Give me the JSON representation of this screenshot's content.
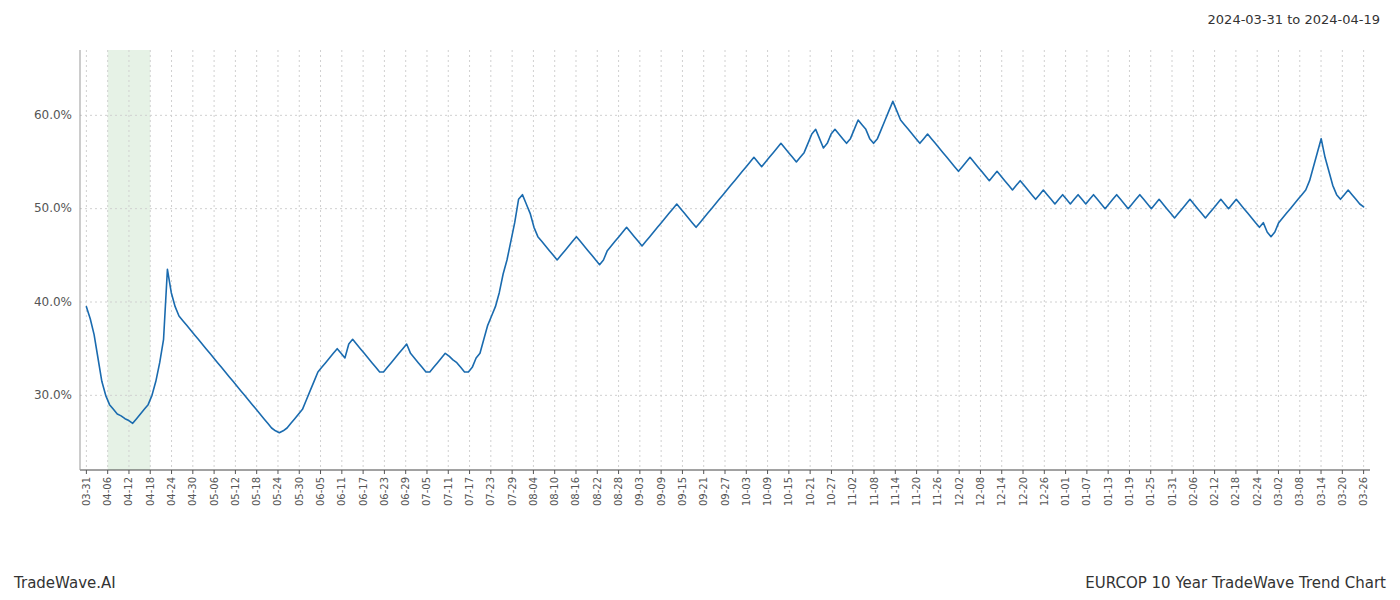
{
  "chart_data": {
    "type": "line",
    "title": "EURCOP 10 Year TradeWave Trend Chart",
    "subtitle": "2024-03-31 to 2024-04-19",
    "annotations": [
      "TradeWave.AI"
    ],
    "grid": true,
    "ylim": [
      22.0,
      67.0
    ],
    "yticks": [
      {
        "value": 30,
        "label": "30.0%"
      },
      {
        "value": 40,
        "label": "40.0%"
      },
      {
        "value": 50,
        "label": "50.0%"
      },
      {
        "value": 60,
        "label": "60.0%"
      }
    ],
    "xlim": [
      -0.3,
      60.3
    ],
    "xticks": [
      {
        "value": 0,
        "label": "03-31"
      },
      {
        "value": 1,
        "label": "04-06"
      },
      {
        "value": 2,
        "label": "04-12"
      },
      {
        "value": 3,
        "label": "04-18"
      },
      {
        "value": 4,
        "label": "04-24"
      },
      {
        "value": 5,
        "label": "04-30"
      },
      {
        "value": 6,
        "label": "05-06"
      },
      {
        "value": 7,
        "label": "05-12"
      },
      {
        "value": 8,
        "label": "05-18"
      },
      {
        "value": 9,
        "label": "05-24"
      },
      {
        "value": 10,
        "label": "05-30"
      },
      {
        "value": 11,
        "label": "06-05"
      },
      {
        "value": 12,
        "label": "06-11"
      },
      {
        "value": 13,
        "label": "06-17"
      },
      {
        "value": 14,
        "label": "06-23"
      },
      {
        "value": 15,
        "label": "06-29"
      },
      {
        "value": 16,
        "label": "07-05"
      },
      {
        "value": 17,
        "label": "07-11"
      },
      {
        "value": 18,
        "label": "07-17"
      },
      {
        "value": 19,
        "label": "07-23"
      },
      {
        "value": 20,
        "label": "07-29"
      },
      {
        "value": 21,
        "label": "08-04"
      },
      {
        "value": 22,
        "label": "08-10"
      },
      {
        "value": 23,
        "label": "08-16"
      },
      {
        "value": 24,
        "label": "08-22"
      },
      {
        "value": 25,
        "label": "08-28"
      },
      {
        "value": 26,
        "label": "09-03"
      },
      {
        "value": 27,
        "label": "09-09"
      },
      {
        "value": 28,
        "label": "09-15"
      },
      {
        "value": 29,
        "label": "09-21"
      },
      {
        "value": 30,
        "label": "09-27"
      },
      {
        "value": 31,
        "label": "10-03"
      },
      {
        "value": 32,
        "label": "10-09"
      },
      {
        "value": 33,
        "label": "10-15"
      },
      {
        "value": 34,
        "label": "10-21"
      },
      {
        "value": 35,
        "label": "10-27"
      },
      {
        "value": 36,
        "label": "11-02"
      },
      {
        "value": 37,
        "label": "11-08"
      },
      {
        "value": 38,
        "label": "11-14"
      },
      {
        "value": 39,
        "label": "11-20"
      },
      {
        "value": 40,
        "label": "11-26"
      },
      {
        "value": 41,
        "label": "12-02"
      },
      {
        "value": 42,
        "label": "12-08"
      },
      {
        "value": 43,
        "label": "12-14"
      },
      {
        "value": 44,
        "label": "12-20"
      },
      {
        "value": 45,
        "label": "12-26"
      },
      {
        "value": 46,
        "label": "01-01"
      },
      {
        "value": 47,
        "label": "01-07"
      },
      {
        "value": 48,
        "label": "01-13"
      },
      {
        "value": 49,
        "label": "01-19"
      },
      {
        "value": 50,
        "label": "01-25"
      },
      {
        "value": 51,
        "label": "01-31"
      },
      {
        "value": 52,
        "label": "02-06"
      },
      {
        "value": 53,
        "label": "02-12"
      },
      {
        "value": 54,
        "label": "02-18"
      },
      {
        "value": 55,
        "label": "02-24"
      },
      {
        "value": 56,
        "label": "03-02"
      },
      {
        "value": 57,
        "label": "03-08"
      },
      {
        "value": 58,
        "label": "03-14"
      },
      {
        "value": 59,
        "label": "03-20"
      },
      {
        "value": 60,
        "label": "03-26"
      }
    ],
    "highlight": {
      "x": [
        1.0,
        3.0
      ],
      "color": "#d5ead5"
    },
    "series": [
      {
        "color": "#1a6baf",
        "values": [
          39.5,
          38.2,
          36.5,
          34.0,
          31.5,
          30.0,
          29.0,
          28.5,
          28.0,
          27.8,
          27.5,
          27.3,
          27.0,
          27.5,
          28.0,
          28.5,
          29.0,
          30.0,
          31.5,
          33.5,
          36.0,
          43.5,
          41.0,
          39.5,
          38.5,
          38.0,
          37.5,
          37.0,
          36.5,
          36.0,
          35.5,
          35.0,
          34.5,
          34.0,
          33.5,
          33.0,
          32.5,
          32.0,
          31.5,
          31.0,
          30.5,
          30.0,
          29.5,
          29.0,
          28.5,
          28.0,
          27.5,
          27.0,
          26.5,
          26.2,
          26.0,
          26.2,
          26.5,
          27.0,
          27.5,
          28.0,
          28.5,
          29.5,
          30.5,
          31.5,
          32.5,
          33.0,
          33.5,
          34.0,
          34.5,
          35.0,
          34.5,
          34.0,
          35.5,
          36.0,
          35.5,
          35.0,
          34.5,
          34.0,
          33.5,
          33.0,
          32.5,
          32.5,
          33.0,
          33.5,
          34.0,
          34.5,
          35.0,
          35.5,
          34.5,
          34.0,
          33.5,
          33.0,
          32.5,
          32.5,
          33.0,
          33.5,
          34.0,
          34.5,
          34.2,
          33.8,
          33.5,
          33.0,
          32.5,
          32.5,
          33.0,
          34.0,
          34.5,
          36.0,
          37.5,
          38.5,
          39.5,
          41.0,
          43.0,
          44.5,
          46.5,
          48.5,
          51.0,
          51.5,
          50.5,
          49.5,
          48.0,
          47.0,
          46.5,
          46.0,
          45.5,
          45.0,
          44.5,
          45.0,
          45.5,
          46.0,
          46.5,
          47.0,
          46.5,
          46.0,
          45.5,
          45.0,
          44.5,
          44.0,
          44.5,
          45.5,
          46.0,
          46.5,
          47.0,
          47.5,
          48.0,
          47.5,
          47.0,
          46.5,
          46.0,
          46.5,
          47.0,
          47.5,
          48.0,
          48.5,
          49.0,
          49.5,
          50.0,
          50.5,
          50.0,
          49.5,
          49.0,
          48.5,
          48.0,
          48.5,
          49.0,
          49.5,
          50.0,
          50.5,
          51.0,
          51.5,
          52.0,
          52.5,
          53.0,
          53.5,
          54.0,
          54.5,
          55.0,
          55.5,
          55.0,
          54.5,
          55.0,
          55.5,
          56.0,
          56.5,
          57.0,
          56.5,
          56.0,
          55.5,
          55.0,
          55.5,
          56.0,
          57.0,
          58.0,
          58.5,
          57.5,
          56.5,
          57.0,
          58.0,
          58.5,
          58.0,
          57.5,
          57.0,
          57.5,
          58.5,
          59.5,
          59.0,
          58.5,
          57.5,
          57.0,
          57.5,
          58.5,
          59.5,
          60.5,
          61.5,
          60.5,
          59.5,
          59.0,
          58.5,
          58.0,
          57.5,
          57.0,
          57.5,
          58.0,
          57.5,
          57.0,
          56.5,
          56.0,
          55.5,
          55.0,
          54.5,
          54.0,
          54.5,
          55.0,
          55.5,
          55.0,
          54.5,
          54.0,
          53.5,
          53.0,
          53.5,
          54.0,
          53.5,
          53.0,
          52.5,
          52.0,
          52.5,
          53.0,
          52.5,
          52.0,
          51.5,
          51.0,
          51.5,
          52.0,
          51.5,
          51.0,
          50.5,
          51.0,
          51.5,
          51.0,
          50.5,
          51.0,
          51.5,
          51.0,
          50.5,
          51.0,
          51.5,
          51.0,
          50.5,
          50.0,
          50.5,
          51.0,
          51.5,
          51.0,
          50.5,
          50.0,
          50.5,
          51.0,
          51.5,
          51.0,
          50.5,
          50.0,
          50.5,
          51.0,
          50.5,
          50.0,
          49.5,
          49.0,
          49.5,
          50.0,
          50.5,
          51.0,
          50.5,
          50.0,
          49.5,
          49.0,
          49.5,
          50.0,
          50.5,
          51.0,
          50.5,
          50.0,
          50.5,
          51.0,
          50.5,
          50.0,
          49.5,
          49.0,
          48.5,
          48.0,
          48.5,
          47.5,
          47.0,
          47.5,
          48.5,
          49.0,
          49.5,
          50.0,
          50.5,
          51.0,
          51.5,
          52.0,
          53.0,
          54.5,
          56.0,
          57.5,
          55.5,
          54.0,
          52.5,
          51.5,
          51.0,
          51.5,
          52.0,
          51.5,
          51.0,
          50.5,
          50.2
        ]
      }
    ]
  }
}
